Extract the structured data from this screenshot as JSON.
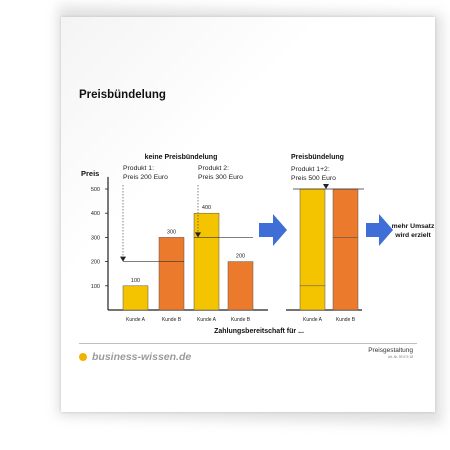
{
  "document": {
    "title": "Preisbündelung",
    "brand": "business-wissen.de",
    "footer_title": "Preisgestaltung",
    "footer_sub": "Art.-Nr. 99 074 18"
  },
  "chart_data": {
    "type": "bar",
    "ylabel": "Preis",
    "xlabel": "Zahlungsbereitschaft für ...",
    "yticks": [
      100,
      200,
      300,
      400,
      500
    ],
    "ylim": [
      0,
      550
    ],
    "colors": {
      "kunde_a": "#f5c400",
      "kunde_b": "#ec7a2d",
      "arrow": "#3f6fd6",
      "outline": "#555555"
    },
    "left_group": {
      "heading": "keine Preisbündelung",
      "product1_label": [
        "Produkt 1:",
        "Preis 200 Euro"
      ],
      "product2_label": [
        "Produkt 2:",
        "Preis 300 Euro"
      ],
      "product1_price": 200,
      "product2_price": 300,
      "bars": [
        {
          "category": "Kunde A",
          "product": "Produkt 1",
          "value": 100,
          "label": "100"
        },
        {
          "category": "Kunde B",
          "product": "Produkt 1",
          "value": 300,
          "label": "300"
        },
        {
          "category": "Kunde A",
          "product": "Produkt 2",
          "value": 400,
          "label": "400"
        },
        {
          "category": "Kunde B",
          "product": "Produkt 2",
          "value": 200,
          "label": "200"
        }
      ]
    },
    "right_group": {
      "heading": "Preisbündelung",
      "bundle_label": [
        "Produkt 1+2:",
        "Preis 500 Euro"
      ],
      "bundle_price": 500,
      "bars": [
        {
          "category": "Kunde A",
          "segments": [
            100,
            400
          ]
        },
        {
          "category": "Kunde B",
          "segments": [
            300,
            200
          ]
        }
      ]
    },
    "result_label": [
      "mehr Umsatz",
      "wird erzielt"
    ]
  }
}
